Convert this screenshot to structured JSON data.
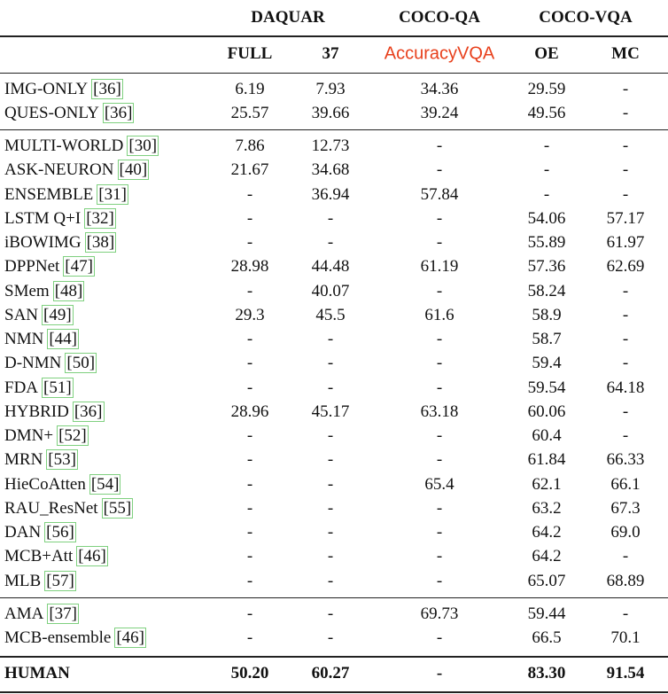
{
  "header": {
    "groups": [
      "DAQUAR",
      "COCO-QA",
      "COCO-VQA"
    ],
    "columns": [
      "FULL",
      "37",
      "AccuracyVQA",
      "OE",
      "MC"
    ]
  },
  "sections": [
    {
      "rows": [
        {
          "method": "IMG-ONLY",
          "cite": "[36]",
          "cells": [
            "6.19",
            "7.93",
            "34.36",
            "29.59",
            "-"
          ]
        },
        {
          "method": "QUES-ONLY",
          "cite": "[36]",
          "cells": [
            "25.57",
            "39.66",
            "39.24",
            "49.56",
            "-"
          ]
        }
      ]
    },
    {
      "rows": [
        {
          "method": "MULTI-WORLD",
          "cite": "[30]",
          "cells": [
            "7.86",
            "12.73",
            "-",
            "-",
            "-"
          ]
        },
        {
          "method": "ASK-NEURON",
          "cite": "[40]",
          "cells": [
            "21.67",
            "34.68",
            "-",
            "-",
            "-"
          ]
        },
        {
          "method": "ENSEMBLE",
          "cite": "[31]",
          "cells": [
            "-",
            "36.94",
            "57.84",
            "-",
            "-"
          ]
        },
        {
          "method": "LSTM Q+I",
          "cite": "[32]",
          "cells": [
            "-",
            "-",
            "-",
            "54.06",
            "57.17"
          ]
        },
        {
          "method": "iBOWIMG",
          "cite": "[38]",
          "cells": [
            "-",
            "-",
            "-",
            "55.89",
            "61.97"
          ]
        },
        {
          "method": "DPPNet",
          "cite": "[47]",
          "cells": [
            "28.98",
            "44.48",
            "61.19",
            "57.36",
            "62.69"
          ]
        },
        {
          "method": "SMem",
          "cite": "[48]",
          "cells": [
            "-",
            "40.07",
            "-",
            "58.24",
            "-"
          ]
        },
        {
          "method": "SAN",
          "cite": "[49]",
          "cells": [
            "29.3",
            "45.5",
            "61.6",
            "58.9",
            "-"
          ]
        },
        {
          "method": "NMN",
          "cite": "[44]",
          "cells": [
            "-",
            "-",
            "-",
            "58.7",
            "-"
          ]
        },
        {
          "method": "D-NMN",
          "cite": "[50]",
          "cells": [
            "-",
            "-",
            "-",
            "59.4",
            "-"
          ]
        },
        {
          "method": "FDA",
          "cite": "[51]",
          "cells": [
            "-",
            "-",
            "-",
            "59.54",
            "64.18"
          ]
        },
        {
          "method": "HYBRID",
          "cite": "[36]",
          "cells": [
            "28.96",
            "45.17",
            "63.18",
            "60.06",
            "-"
          ]
        },
        {
          "method": "DMN+",
          "cite": "[52]",
          "cells": [
            "-",
            "-",
            "-",
            "60.4",
            "-"
          ]
        },
        {
          "method": "MRN",
          "cite": "[53]",
          "cells": [
            "-",
            "-",
            "-",
            "61.84",
            "66.33"
          ]
        },
        {
          "method": "HieCoAtten",
          "cite": "[54]",
          "cells": [
            "-",
            "-",
            "65.4",
            "62.1",
            "66.1"
          ]
        },
        {
          "method": "RAU_ResNet",
          "cite": "[55]",
          "cells": [
            "-",
            "-",
            "-",
            "63.2",
            "67.3"
          ]
        },
        {
          "method": "DAN",
          "cite": "[56]",
          "cells": [
            "-",
            "-",
            "-",
            "64.2",
            "69.0"
          ]
        },
        {
          "method": "MCB+Att",
          "cite": "[46]",
          "cells": [
            "-",
            "-",
            "-",
            "64.2",
            "-"
          ]
        },
        {
          "method": "MLB",
          "cite": "[57]",
          "cells": [
            "-",
            "-",
            "-",
            "65.07",
            "68.89"
          ]
        }
      ]
    },
    {
      "rows": [
        {
          "method": "AMA",
          "cite": "[37]",
          "cells": [
            "-",
            "-",
            "69.73",
            "59.44",
            "-"
          ]
        },
        {
          "method": "MCB-ensemble",
          "cite": "[46]",
          "cells": [
            "-",
            "-",
            "-",
            "66.5",
            "70.1"
          ]
        }
      ]
    }
  ],
  "human": {
    "method": "HUMAN",
    "cells": [
      "50.20",
      "60.27",
      "-",
      "83.30",
      "91.54"
    ]
  }
}
